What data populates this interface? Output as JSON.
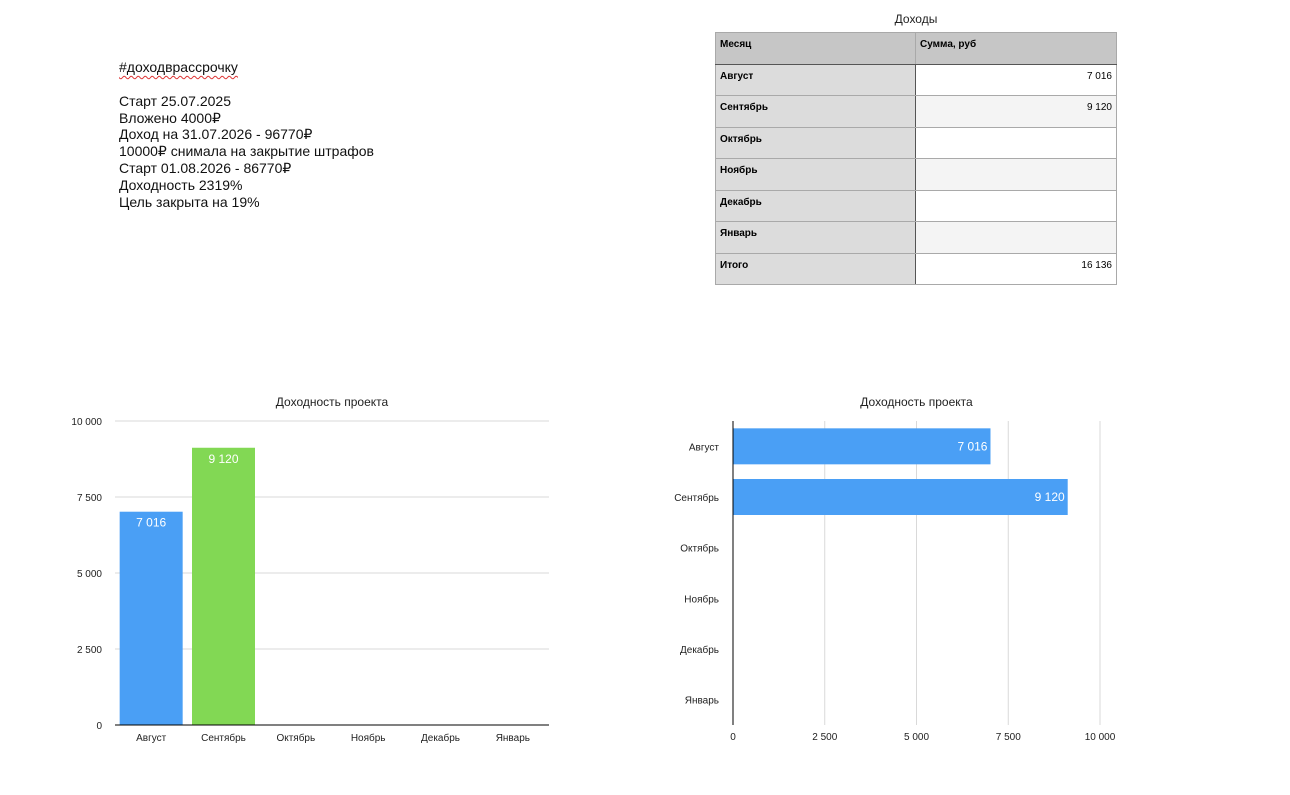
{
  "notes": {
    "hashtag": "#доходврассрочку",
    "lines": [
      "Старт 25.07.2025",
      "Вложено 4000₽",
      "Доход на 31.07.2026 - 96770₽",
      "10000₽ снимала на закрытие штрафов",
      "Старт 01.08.2026 - 86770₽",
      "Доходность 2319%",
      "Цель закрыта на 19%"
    ]
  },
  "table": {
    "title": "Доходы",
    "headers": [
      "Месяц",
      "Сумма, руб"
    ],
    "rows": [
      {
        "month": "Август",
        "sum": "7 016"
      },
      {
        "month": "Сентябрь",
        "sum": "9 120"
      },
      {
        "month": "Октябрь",
        "sum": ""
      },
      {
        "month": "Ноябрь",
        "sum": ""
      },
      {
        "month": "Декабрь",
        "sum": ""
      },
      {
        "month": "Январь",
        "sum": ""
      },
      {
        "month": "Итого",
        "sum": "16 136"
      }
    ]
  },
  "chart_data": [
    {
      "type": "bar",
      "orientation": "vertical",
      "title": "Доходность проекта",
      "categories": [
        "Август",
        "Сентябрь",
        "Октябрь",
        "Ноябрь",
        "Декабрь",
        "Январь"
      ],
      "values": [
        7016,
        9120,
        null,
        null,
        null,
        null
      ],
      "value_labels": [
        "7 016",
        "9 120",
        "",
        "",
        "",
        ""
      ],
      "bar_colors": [
        "#4a9ff5",
        "#82d854",
        "#4a9ff5",
        "#4a9ff5",
        "#4a9ff5",
        "#4a9ff5"
      ],
      "ylim": [
        0,
        10000
      ],
      "yticks": [
        0,
        2500,
        5000,
        7500,
        10000
      ],
      "ytick_labels": [
        "0",
        "2 500",
        "5 000",
        "7 500",
        "10 000"
      ],
      "grid": true
    },
    {
      "type": "bar",
      "orientation": "horizontal",
      "title": "Доходность проекта",
      "categories": [
        "Август",
        "Сентябрь",
        "Октябрь",
        "Ноябрь",
        "Декабрь",
        "Январь"
      ],
      "values": [
        7016,
        9120,
        null,
        null,
        null,
        null
      ],
      "value_labels": [
        "7 016",
        "9 120",
        "",
        "",
        "",
        ""
      ],
      "bar_color": "#4a9ff5",
      "xlim": [
        0,
        10000
      ],
      "xticks": [
        0,
        2500,
        5000,
        7500,
        10000
      ],
      "xtick_labels": [
        "0",
        "2 500",
        "5 000",
        "7 500",
        "10 000"
      ],
      "grid": true
    }
  ]
}
